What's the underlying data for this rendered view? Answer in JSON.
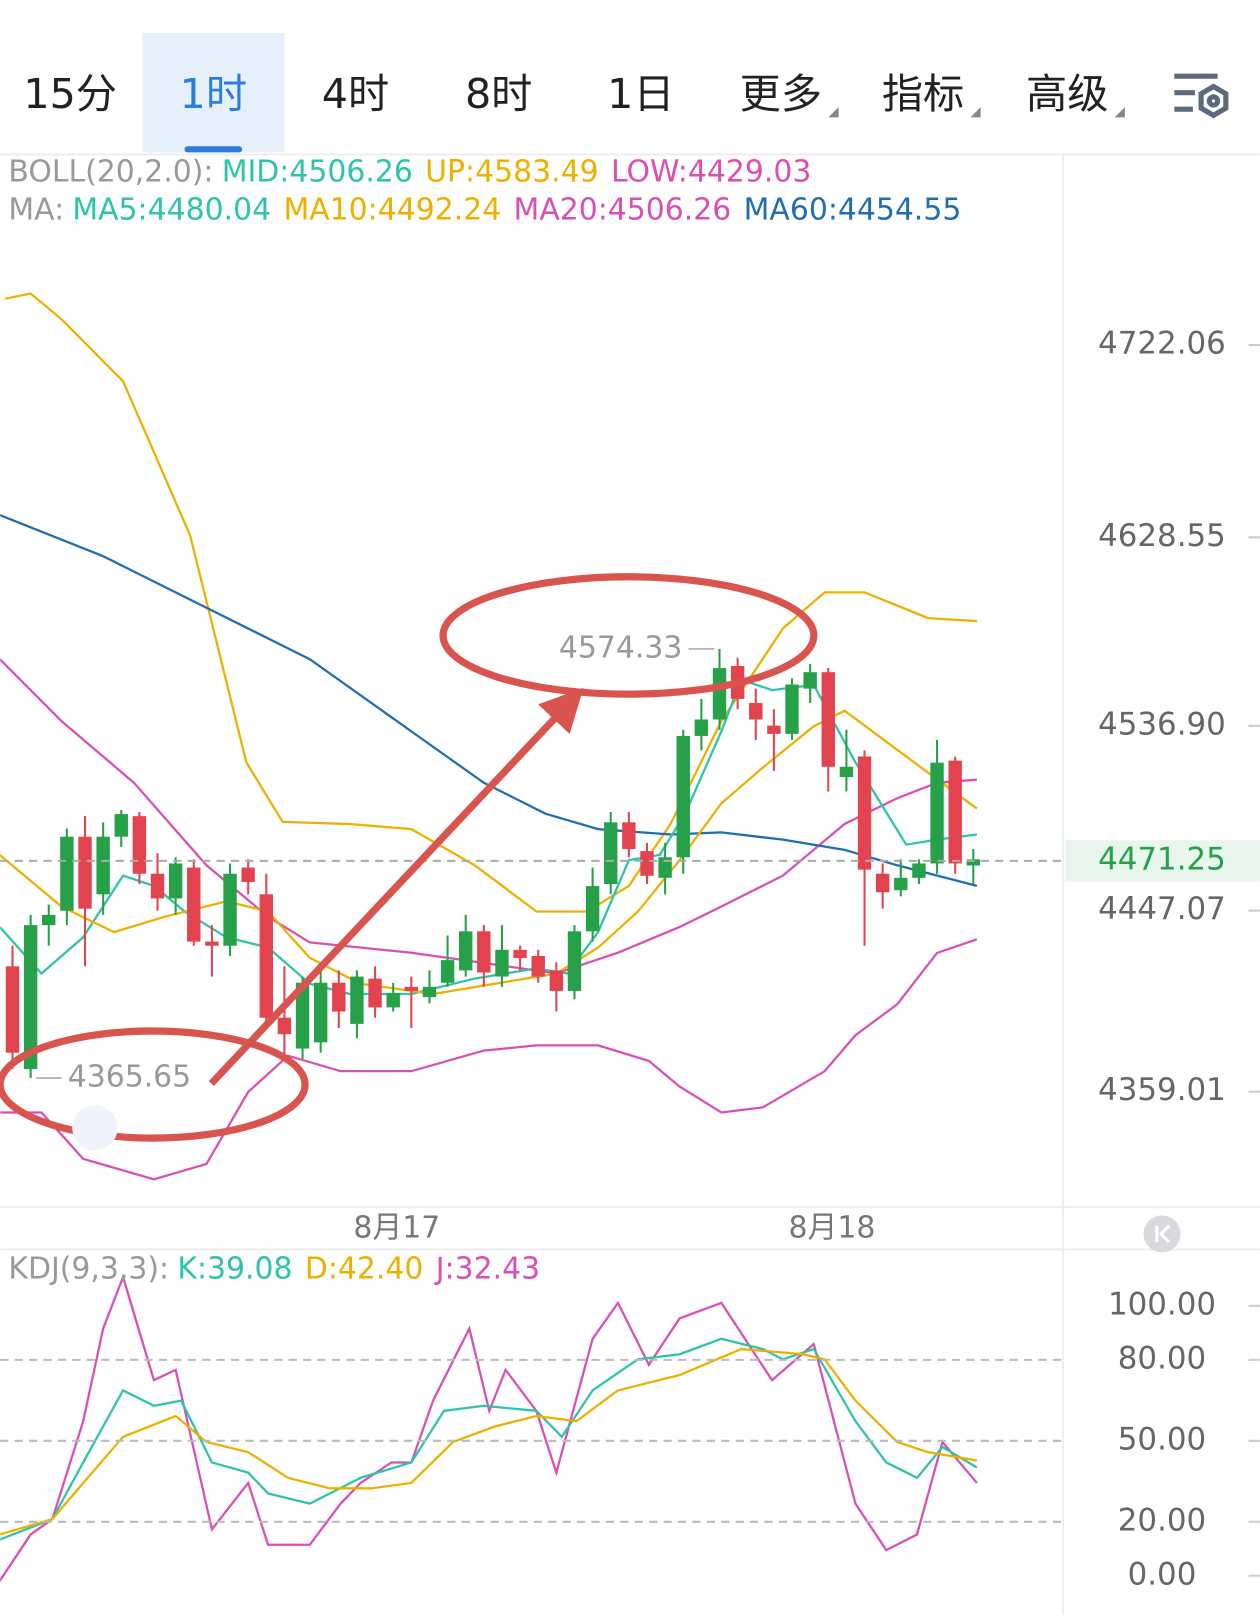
{
  "tabs": [
    "15分",
    "1时",
    "4时",
    "8时",
    "1日"
  ],
  "menus": [
    "更多",
    "指标",
    "高级"
  ],
  "active_tab": 1,
  "chart_data": [
    {
      "type": "candlestick",
      "legend_rows": [
        {
          "label": "BOLL(20,2.0):",
          "items": [
            {
              "text": "MID:4506.26",
              "color": "#2ec4a8"
            },
            {
              "text": "UP:4583.49",
              "color": "#eeb000"
            },
            {
              "text": "LOW:4429.03",
              "color": "#d94fb4"
            }
          ]
        },
        {
          "label": "MA:",
          "items": [
            {
              "text": "MA5:4480.04",
              "color": "#2ec4a8"
            },
            {
              "text": "MA10:4492.24",
              "color": "#eeb000"
            },
            {
              "text": "MA20:4506.26",
              "color": "#d94fb4"
            },
            {
              "text": "MA60:4454.55",
              "color": "#1f6fb0"
            }
          ]
        }
      ],
      "up_color": "#27a04a",
      "down_color": "#e2434f",
      "open": [
        4420,
        4370,
        4440,
        4447,
        4483,
        4455,
        4483,
        4493,
        4465,
        4453,
        4468,
        4432,
        4430,
        4468,
        4455,
        4395,
        4380,
        4383,
        4412,
        4392,
        4414,
        4400,
        4410,
        4405,
        4412,
        4418,
        4437,
        4415,
        4428,
        4425,
        4418,
        4408,
        4437,
        4460,
        4490,
        4476,
        4463,
        4473,
        4532,
        4540,
        4566,
        4548,
        4537,
        4533,
        4555,
        4563,
        4512,
        4522,
        4465,
        4457,
        4463,
        4470,
        4520,
        4469
      ],
      "high": [
        4430,
        4445,
        4450,
        4487,
        4493,
        4490,
        4496,
        4495,
        4475,
        4473,
        4472,
        4440,
        4470,
        4472,
        4465,
        4420,
        4415,
        4418,
        4418,
        4418,
        4420,
        4412,
        4415,
        4418,
        4435,
        4445,
        4440,
        4440,
        4430,
        4428,
        4422,
        4440,
        4468,
        4495,
        4495,
        4480,
        4480,
        4535,
        4550,
        4574.33,
        4570,
        4555,
        4545,
        4560,
        4567,
        4565,
        4535,
        4525,
        4470,
        4472,
        4472,
        4530,
        4522,
        4477
      ],
      "low": [
        4370,
        4365.65,
        4430,
        4440,
        4420,
        4445,
        4478,
        4460,
        4447,
        4445,
        4430,
        4415,
        4425,
        4455,
        4390,
        4375,
        4375,
        4378,
        4390,
        4385,
        4395,
        4398,
        4390,
        4402,
        4410,
        4415,
        4410,
        4410,
        4418,
        4412,
        4398,
        4404,
        4432,
        4455,
        4473,
        4460,
        4455,
        4465,
        4525,
        4535,
        4545,
        4530,
        4515,
        4530,
        4548,
        4505,
        4505,
        4430,
        4448,
        4454,
        4460,
        4465,
        4465,
        4460
      ],
      "close": [
        4378,
        4440,
        4445,
        4483,
        4448,
        4483,
        4494,
        4465,
        4453,
        4470,
        4432,
        4430,
        4465,
        4461,
        4395,
        4387,
        4412,
        4412,
        4398,
        4415,
        4400,
        4407,
        4408,
        4410,
        4423,
        4437,
        4417,
        4428,
        4424,
        4415,
        4408,
        4437,
        4459,
        4490,
        4477,
        4464,
        4473,
        4532,
        4540,
        4565,
        4550,
        4540,
        4533,
        4557,
        4563,
        4517,
        4517,
        4467,
        4456,
        4463,
        4470,
        4519,
        4470,
        4472
      ],
      "series": [
        {
          "color": "#eeb000",
          "x": [
            -0.4,
            1.0,
            2.7,
            6.1,
            9.8,
            12.9,
            14.9,
            18.6,
            22.0,
            25.5,
            28.9,
            31.7,
            34.0,
            36.3,
            39.1,
            42.5,
            44.8,
            47.0,
            50.5,
            53.2
          ],
          "values": [
            4744.6,
            4747.1,
            4734.6,
            4704.5,
            4629.4,
            4519.2,
            4490.2,
            4489.2,
            4486.7,
            4469.1,
            4446.6,
            4446.6,
            4459.1,
            4489.2,
            4539.2,
            4584.3,
            4601.8,
            4601.8,
            4589.3,
            4587.8
          ]
        },
        {
          "color": "#d94fb4",
          "x": [
            -0.7,
            1.6,
            3.9,
            7.8,
            10.7,
            13.0,
            15.2,
            18.1,
            22.0,
            26.0,
            28.9,
            32.3,
            35.1,
            36.8,
            39.1,
            41.4,
            44.8,
            46.5,
            48.8,
            51.0,
            53.2
          ],
          "values": [
            4348.9,
            4348.9,
            4326.4,
            4316.4,
            4323.9,
            4358.9,
            4376.5,
            4369.0,
            4369.0,
            4379.0,
            4381.5,
            4381.5,
            4374.0,
            4361.5,
            4348.9,
            4351.4,
            4369.0,
            4386.5,
            4401.5,
            4426.5,
            4433.1
          ]
        },
        {
          "color": "#d94fb4",
          "x": [
            -0.7,
            2.7,
            6.7,
            10.7,
            14.1,
            16.4,
            22.0,
            26.0,
            30.0,
            33.4,
            36.8,
            39.1,
            42.5,
            45.9,
            48.8,
            51.0,
            53.2
          ],
          "values": [
            4569.3,
            4539.2,
            4509.2,
            4469.1,
            4444.1,
            4431.6,
            4426.6,
            4421.6,
            4416.6,
            4426.6,
            4439.1,
            4449.1,
            4464.1,
            4489.2,
            4501.7,
            4509.2,
            4510.7
          ]
        },
        {
          "color": "#1f6fb0",
          "x": [
            -0.7,
            5.0,
            10.7,
            16.4,
            22.0,
            26.0,
            29.4,
            32.3,
            36.3,
            39.1,
            42.5,
            45.9,
            48.8,
            53.2
          ],
          "values": [
            4639.4,
            4619.4,
            4594.3,
            4569.3,
            4534.2,
            4509.2,
            4494.2,
            4486.7,
            4484.1,
            4485.1,
            4481.6,
            4476.6,
            4469.1,
            4459.1
          ]
        },
        {
          "color": "#2ec4a8",
          "x": [
            -0.7,
            1.6,
            3.9,
            6.1,
            7.8,
            9.5,
            11.8,
            14.1,
            16.4,
            18.6,
            22.0,
            25.5,
            28.9,
            30.6,
            32.3,
            34.0,
            35.7,
            37.1,
            39.1,
            40.2,
            41.9,
            44.2,
            46.5,
            49.3,
            51.0,
            53.2
          ],
          "values": [
            4439.1,
            4416.5,
            4434.1,
            4464.1,
            4459.1,
            4446.6,
            4434.1,
            4429.1,
            4411.5,
            4406.5,
            4406.5,
            4414.0,
            4419.0,
            4416.5,
            4436.6,
            4471.6,
            4474.1,
            4494.2,
            4534.2,
            4559.3,
            4554.3,
            4556.8,
            4519.2,
            4479.1,
            4481.6,
            4484.1
          ]
        },
        {
          "color": "#eeb000",
          "x": [
            -0.7,
            2.7,
            5.6,
            8.4,
            11.8,
            14.1,
            16.4,
            19.2,
            23.2,
            26.6,
            30.0,
            32.3,
            34.5,
            36.8,
            39.1,
            41.4,
            44.2,
            45.9,
            48.2,
            50.5,
            53.2
          ],
          "values": [
            4474.1,
            4449.1,
            4436.6,
            4444.1,
            4451.6,
            4446.6,
            4424.1,
            4411.5,
            4406.5,
            4411.5,
            4416.5,
            4429.1,
            4446.6,
            4471.6,
            4499.2,
            4516.7,
            4536.7,
            4544.3,
            4529.2,
            4514.2,
            4496.7
          ]
        }
      ],
      "annotations": [
        {
          "x": 39,
          "value": 4574.33,
          "side": "left"
        },
        {
          "x": 1,
          "value": 4365.65,
          "side": "right"
        }
      ],
      "last_price": 4471.25,
      "xlim": [
        -0.68,
        57.84
      ],
      "xticks": [
        {
          "value": 21.2,
          "label": "8月17"
        },
        {
          "value": 45.2,
          "label": "8月18"
        }
      ],
      "ylim": [
        4303.9,
        4814.7
      ],
      "yticks": [
        4722.06,
        4628.55,
        {
          "value": 4536.9,
          "label": "4536.90"
        },
        4447.07,
        4359.01
      ]
    },
    {
      "type": "line",
      "legend_rows": [
        {
          "label": "KDJ(9,3,3):",
          "items": [
            {
              "text": "K:39.08",
              "color": "#2ec4a8"
            },
            {
              "text": "D:42.40",
              "color": "#eeb000"
            },
            {
              "text": "J:32.43",
              "color": "#d94fb4"
            }
          ]
        }
      ],
      "series": [
        {
          "color": "#d94fb4",
          "x": [
            -0.7,
            1.0,
            2.2,
            3.9,
            5.0,
            6.1,
            7.8,
            9.0,
            11.0,
            13.0,
            14.1,
            16.4,
            18.1,
            19.2,
            20.9,
            22.0,
            23.2,
            25.2,
            26.3,
            27.2,
            28.9,
            30.0,
            32.0,
            33.4,
            35.1,
            36.8,
            39.1,
            41.9,
            44.2,
            46.5,
            48.2,
            49.9,
            51.3,
            53.2
          ],
          "values": [
            -1.9,
            15.3,
            21.0,
            57.3,
            91.6,
            110.7,
            72.5,
            76.3,
            17.2,
            34.4,
            11.5,
            11.5,
            26.7,
            34.4,
            42.0,
            42.0,
            64.9,
            91.6,
            61.1,
            76.3,
            61.1,
            38.2,
            87.8,
            101.1,
            78.2,
            95.4,
            101.1,
            72.5,
            85.9,
            26.7,
            9.5,
            15.3,
            49.6,
            34.4
          ]
        },
        {
          "color": "#2ec4a8",
          "x": [
            -0.7,
            2.2,
            3.9,
            6.1,
            7.8,
            9.3,
            11.0,
            13.0,
            14.1,
            16.4,
            19.2,
            22.0,
            23.8,
            26.0,
            28.9,
            30.3,
            32.0,
            34.5,
            36.8,
            39.1,
            41.4,
            42.5,
            44.2,
            46.5,
            48.2,
            49.9,
            51.3,
            53.2
          ],
          "values": [
            13.4,
            21.0,
            42.0,
            68.7,
            63.0,
            64.9,
            42.0,
            38.2,
            30.5,
            26.7,
            36.3,
            42.0,
            61.1,
            63.0,
            61.1,
            51.5,
            68.7,
            80.2,
            82.1,
            87.8,
            84.0,
            80.2,
            84.0,
            57.3,
            42.0,
            36.3,
            47.7,
            40.1
          ]
        },
        {
          "color": "#eeb000",
          "x": [
            -0.7,
            2.2,
            3.9,
            6.1,
            9.0,
            10.7,
            13.0,
            15.2,
            17.5,
            19.8,
            22.0,
            24.3,
            26.6,
            28.9,
            31.1,
            33.4,
            36.8,
            40.2,
            43.6,
            44.8,
            46.5,
            48.8,
            50.5,
            53.2
          ],
          "values": [
            15.3,
            21.0,
            34.4,
            51.5,
            59.2,
            49.6,
            45.8,
            36.3,
            32.4,
            32.4,
            34.4,
            49.6,
            55.3,
            59.2,
            57.3,
            68.7,
            74.4,
            84.0,
            82.1,
            80.2,
            64.9,
            49.6,
            45.8,
            42.7
          ]
        }
      ],
      "xlim": [
        -0.68,
        57.84
      ],
      "ylim": [
        -13.4,
        120.2
      ],
      "yticks": [
        {
          "value": 100,
          "label": "100.00"
        },
        {
          "value": 80,
          "label": "80.00"
        },
        {
          "value": 50,
          "label": "50.00"
        },
        {
          "value": 20,
          "label": "20.00"
        },
        {
          "value": 0,
          "label": "0.00"
        }
      ],
      "grid": [
        1,
        2,
        3
      ]
    }
  ]
}
